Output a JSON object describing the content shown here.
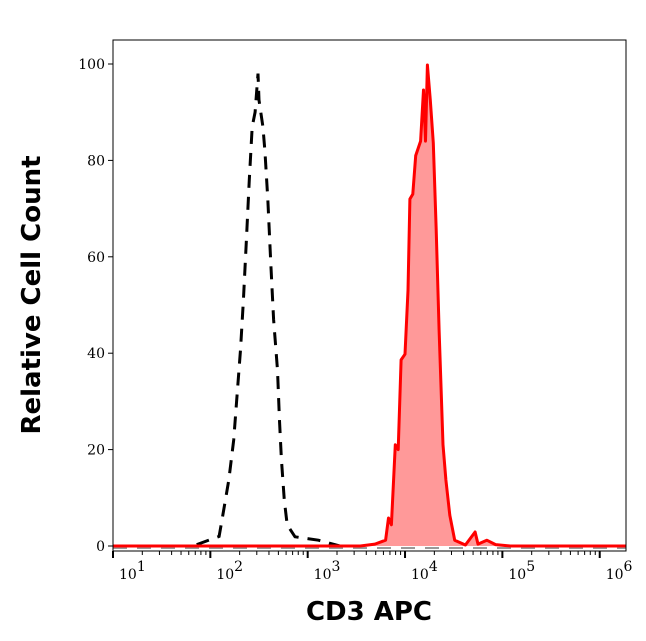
{
  "chart_data": {
    "type": "area",
    "title": "",
    "xlabel": "CD3 APC",
    "ylabel": "Relative Cell Count",
    "x_scale": "log",
    "xlim_log10": [
      1,
      6.27
    ],
    "ylim": [
      0,
      105
    ],
    "x_ticks": [
      {
        "base": "10",
        "exp": "1",
        "log10": 1
      },
      {
        "base": "10",
        "exp": "2",
        "log10": 2
      },
      {
        "base": "10",
        "exp": "3",
        "log10": 3
      },
      {
        "base": "10",
        "exp": "4",
        "log10": 4
      },
      {
        "base": "10",
        "exp": "5",
        "log10": 5
      },
      {
        "base": "10",
        "exp": "6",
        "log10": 6
      }
    ],
    "y_ticks": [
      "0",
      "20",
      "40",
      "60",
      "80",
      "100"
    ],
    "grid": false,
    "series": [
      {
        "style": "dashed-line",
        "color": "#000000",
        "points_log10x_y": [
          [
            1.86,
            0.3
          ],
          [
            2.09,
            2
          ],
          [
            2.12,
            5.4
          ],
          [
            2.19,
            13.7
          ],
          [
            2.24,
            22
          ],
          [
            2.27,
            30
          ],
          [
            2.31,
            40.7
          ],
          [
            2.34,
            51
          ],
          [
            2.37,
            63.5
          ],
          [
            2.4,
            76
          ],
          [
            2.43,
            87
          ],
          [
            2.46,
            90
          ],
          [
            2.49,
            98
          ],
          [
            2.5,
            92.5
          ],
          [
            2.54,
            87
          ],
          [
            2.56,
            82
          ],
          [
            2.59,
            72
          ],
          [
            2.62,
            59
          ],
          [
            2.65,
            47
          ],
          [
            2.69,
            36.5
          ],
          [
            2.71,
            26
          ],
          [
            2.73,
            18
          ],
          [
            2.76,
            9.5
          ],
          [
            2.79,
            4.4
          ],
          [
            2.87,
            1.9
          ],
          [
            3.11,
            1.2
          ],
          [
            3.33,
            0
          ]
        ]
      },
      {
        "style": "filled",
        "color": "#ff0000",
        "fill": "#ff9999",
        "points_log10x_y": [
          [
            1,
            0
          ],
          [
            3.54,
            0
          ],
          [
            3.69,
            0.4
          ],
          [
            3.8,
            1.2
          ],
          [
            3.83,
            5.8
          ],
          [
            3.86,
            4.4
          ],
          [
            3.9,
            21
          ],
          [
            3.93,
            20
          ],
          [
            3.96,
            38.6
          ],
          [
            4.0,
            39.8
          ],
          [
            4.03,
            53
          ],
          [
            4.05,
            72
          ],
          [
            4.08,
            73
          ],
          [
            4.11,
            81
          ],
          [
            4.16,
            84
          ],
          [
            4.19,
            94.6
          ],
          [
            4.21,
            84
          ],
          [
            4.23,
            99.8
          ],
          [
            4.26,
            92.5
          ],
          [
            4.29,
            83.6
          ],
          [
            4.32,
            65.6
          ],
          [
            4.35,
            44.8
          ],
          [
            4.39,
            21
          ],
          [
            4.42,
            13.7
          ],
          [
            4.46,
            6.4
          ],
          [
            4.51,
            1.2
          ],
          [
            4.62,
            0.2
          ],
          [
            4.72,
            2.9
          ],
          [
            4.75,
            0.4
          ],
          [
            4.84,
            1.2
          ],
          [
            4.93,
            0.3
          ],
          [
            5.08,
            0
          ],
          [
            6.27,
            0
          ]
        ]
      }
    ]
  }
}
